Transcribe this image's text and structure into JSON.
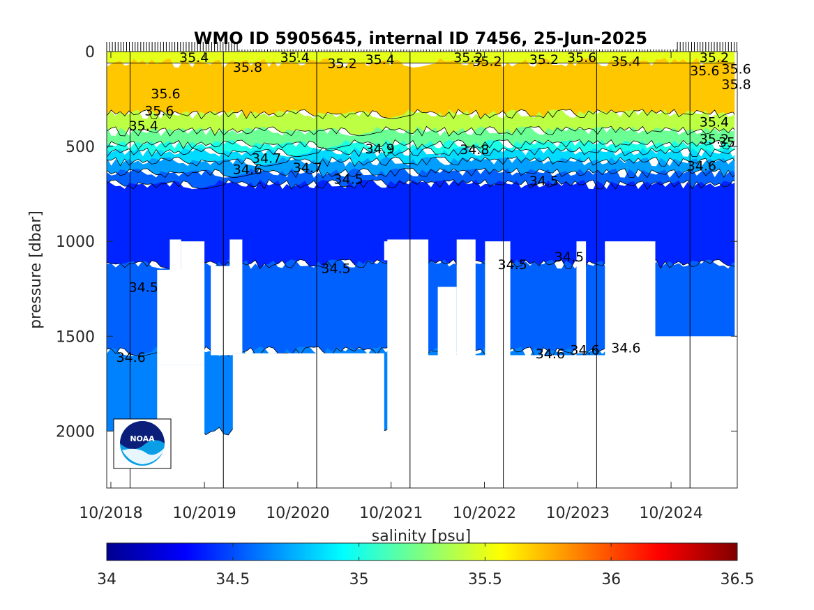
{
  "chart_data": {
    "type": "heatmap",
    "title": "WMO ID 5905645, internal ID 7456, 25-Jun-2025",
    "ylabel": "pressure [dbar]",
    "xlabel": "salinity [psu]",
    "y_axis": {
      "ticks": [
        0,
        500,
        1000,
        1500,
        2000
      ],
      "range": [
        0,
        2300
      ],
      "reversed": true
    },
    "x_axis": {
      "tick_labels": [
        "10/2018",
        "10/2019",
        "10/2020",
        "10/2021",
        "10/2022",
        "10/2023",
        "10/2024"
      ]
    },
    "colorbar": {
      "ticks": [
        "34",
        "34.5",
        "35",
        "35.5",
        "36",
        "36.5"
      ],
      "range": [
        34,
        36.5
      ],
      "colormap": "jet"
    },
    "profile_layers": [
      {
        "salinity": 35.5,
        "top": 0,
        "bottom": 60
      },
      {
        "salinity": 35.7,
        "top": 60,
        "bottom": 330
      },
      {
        "salinity": 35.4,
        "top": 330,
        "bottom": 420
      },
      {
        "salinity": 35.2,
        "top": 420,
        "bottom": 490
      },
      {
        "salinity": 35.0,
        "top": 490,
        "bottom": 530
      },
      {
        "salinity": 34.85,
        "top": 530,
        "bottom": 580
      },
      {
        "salinity": 34.7,
        "top": 580,
        "bottom": 640
      },
      {
        "salinity": 34.55,
        "top": 640,
        "bottom": 700
      },
      {
        "salinity": 34.4,
        "top": 700,
        "bottom": 1120
      },
      {
        "salinity": 34.55,
        "top": 1120,
        "bottom": 1580
      },
      {
        "salinity": 34.63,
        "top": 1580,
        "bottom": 2000
      }
    ],
    "contour_labels": [
      {
        "text": "35.6",
        "x": 0.07,
        "p": 220
      },
      {
        "text": "35.6",
        "x": 0.06,
        "p": 310
      },
      {
        "text": "35.4",
        "x": 0.035,
        "p": 390
      },
      {
        "text": "34.7",
        "x": 0.23,
        "p": 560
      },
      {
        "text": "34.6",
        "x": 0.2,
        "p": 620
      },
      {
        "text": "34.7",
        "x": 0.295,
        "p": 610
      },
      {
        "text": "34.5",
        "x": 0.36,
        "p": 670
      },
      {
        "text": "34.9",
        "x": 0.41,
        "p": 510
      },
      {
        "text": "34.8",
        "x": 0.56,
        "p": 515
      },
      {
        "text": "34.5",
        "x": 0.67,
        "p": 680
      },
      {
        "text": "34.6",
        "x": 0.92,
        "p": 600
      },
      {
        "text": "35.4",
        "x": 0.94,
        "p": 370
      },
      {
        "text": "35.2",
        "x": 0.94,
        "p": 460
      },
      {
        "text": "35",
        "x": 0.97,
        "p": 475
      },
      {
        "text": "34.5",
        "x": 0.34,
        "p": 1140
      },
      {
        "text": "34.5",
        "x": 0.62,
        "p": 1120
      },
      {
        "text": "34.5",
        "x": 0.71,
        "p": 1080
      },
      {
        "text": "34.5",
        "x": 0.035,
        "p": 1240
      },
      {
        "text": "34.6",
        "x": 0.015,
        "p": 1610
      },
      {
        "text": "34.6",
        "x": 0.68,
        "p": 1590
      },
      {
        "text": "34.6",
        "x": 0.735,
        "p": 1570
      },
      {
        "text": "34.6",
        "x": 0.8,
        "p": 1560
      },
      {
        "text": "35.4",
        "x": 0.115,
        "p": 30
      },
      {
        "text": "35.4",
        "x": 0.275,
        "p": 30
      },
      {
        "text": "35.8",
        "x": 0.2,
        "p": 80
      },
      {
        "text": "35.2",
        "x": 0.35,
        "p": 60
      },
      {
        "text": "35.4",
        "x": 0.41,
        "p": 40
      },
      {
        "text": "35.2",
        "x": 0.55,
        "p": 30
      },
      {
        "text": "35.2",
        "x": 0.58,
        "p": 50
      },
      {
        "text": "35.2",
        "x": 0.67,
        "p": 40
      },
      {
        "text": "35.6",
        "x": 0.73,
        "p": 30
      },
      {
        "text": "35.4",
        "x": 0.8,
        "p": 50
      },
      {
        "text": "35.2",
        "x": 0.94,
        "p": 30
      },
      {
        "text": "35.6",
        "x": 0.925,
        "p": 100
      },
      {
        "text": "35.6",
        "x": 0.975,
        "p": 90
      },
      {
        "text": "35.8",
        "x": 0.975,
        "p": 170
      }
    ]
  }
}
